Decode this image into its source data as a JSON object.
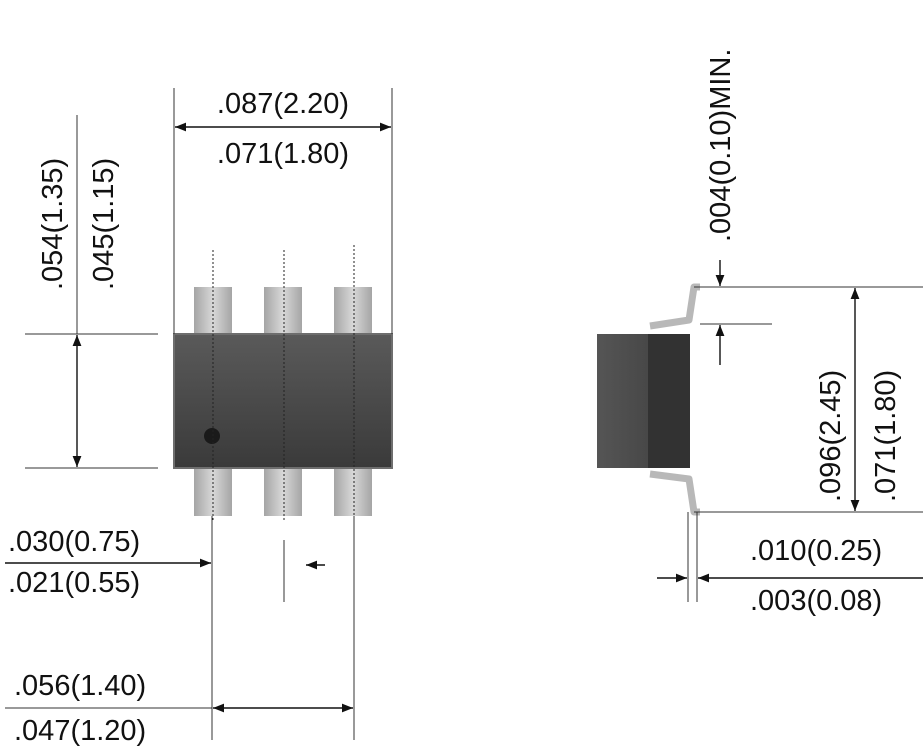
{
  "colors": {
    "body_top": "#5a5a5a",
    "body_bottom": "#3a3a3a",
    "body_edge": "#6e6e6e",
    "lead_light": "#d0d0d0",
    "lead_dark": "#a5a5a5",
    "pin1_dot": "#1a1a1a",
    "line": "#111111"
  },
  "icons": {
    "arrow": "arrowhead-icon"
  },
  "top_view": {
    "body_width_max": ".087(2.20)",
    "body_width_min": ".071(1.80)",
    "body_height_max": ".054(1.35)",
    "body_height_min": ".045(1.15)",
    "lead_width_max": ".030(0.75)",
    "lead_width_min": ".021(0.55)",
    "pitch_max": ".056(1.40)",
    "pitch_min": ".047(1.20)"
  },
  "side_view": {
    "standoff": ".004(0.10)MIN.",
    "overall_height_max": ".096(2.45)",
    "overall_height_min": ".071(1.80)",
    "lead_thickness_max": ".010(0.25)",
    "lead_thickness_min": ".003(0.08)"
  }
}
